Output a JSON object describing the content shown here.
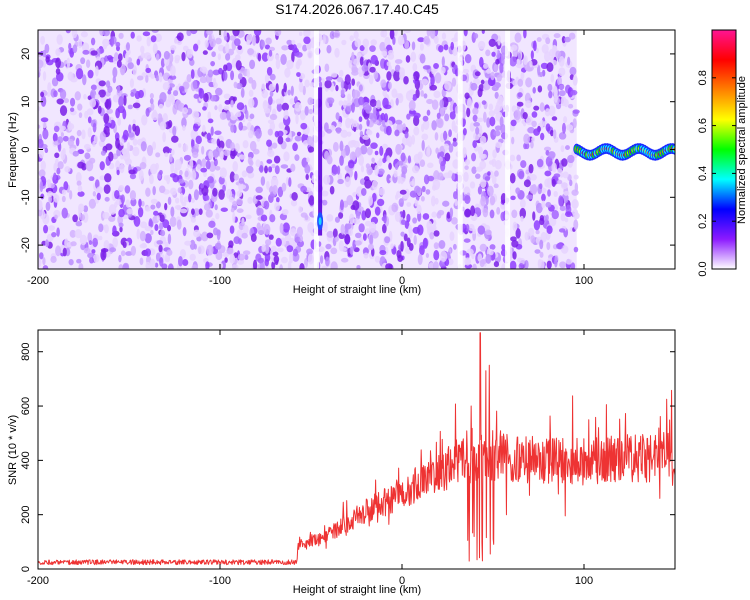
{
  "title": "S174.2026.067.17.40.C45",
  "chart_data": [
    {
      "type": "heatmap",
      "xlabel": "Height of straight line (km)",
      "ylabel": "Frequency (Hz)",
      "xlim": [
        -200,
        150
      ],
      "ylim": [
        -25,
        25
      ],
      "xticks": [
        -200,
        -100,
        0,
        100
      ],
      "yticks": [
        -20,
        -10,
        0,
        10,
        20
      ],
      "noise_region_x": [
        -200,
        96
      ],
      "artifact_lines_x": [
        -47,
        32,
        58
      ],
      "bright_streak": {
        "x": -45,
        "y_range": [
          -18,
          13
        ]
      },
      "signal_band": {
        "x_range": [
          96,
          150
        ],
        "y_center": -0.5,
        "y_halfwidth": 1.5
      },
      "colorbar": {
        "label": "Normalized spectral amplitude",
        "range": [
          0.0,
          1.0
        ],
        "ticks": [
          0.0,
          0.2,
          0.4,
          0.6,
          0.8
        ],
        "tick_labels": [
          "0.0",
          "0.2",
          "0.4",
          "0.6",
          "0.8"
        ],
        "colors": [
          "#ffffff",
          "#8c1aff",
          "#0000ff",
          "#00ffff",
          "#00ff00",
          "#ffff00",
          "#ff8000",
          "#ff0000",
          "#ff1493"
        ]
      }
    },
    {
      "type": "line",
      "xlabel": "Height of straight line (km)",
      "ylabel": "SNR (10 * v/v)",
      "xlim": [
        -200,
        150
      ],
      "ylim": [
        0,
        880
      ],
      "xticks": [
        -200,
        -100,
        0,
        100
      ],
      "yticks": [
        0,
        200,
        400,
        600,
        800
      ],
      "color": "#ee3333",
      "profile_x": [
        -200,
        -58,
        -57,
        -40,
        -20,
        0,
        20,
        40,
        60,
        80,
        100,
        120,
        150
      ],
      "profile_y": [
        25,
        25,
        80,
        130,
        210,
        280,
        360,
        405,
        410,
        400,
        395,
        405,
        410
      ],
      "spike_peaks": [
        {
          "x": 38,
          "y": 600
        },
        {
          "x": 43,
          "y": 870
        },
        {
          "x": 46,
          "y": 730
        },
        {
          "x": 48,
          "y": 750
        }
      ]
    }
  ]
}
